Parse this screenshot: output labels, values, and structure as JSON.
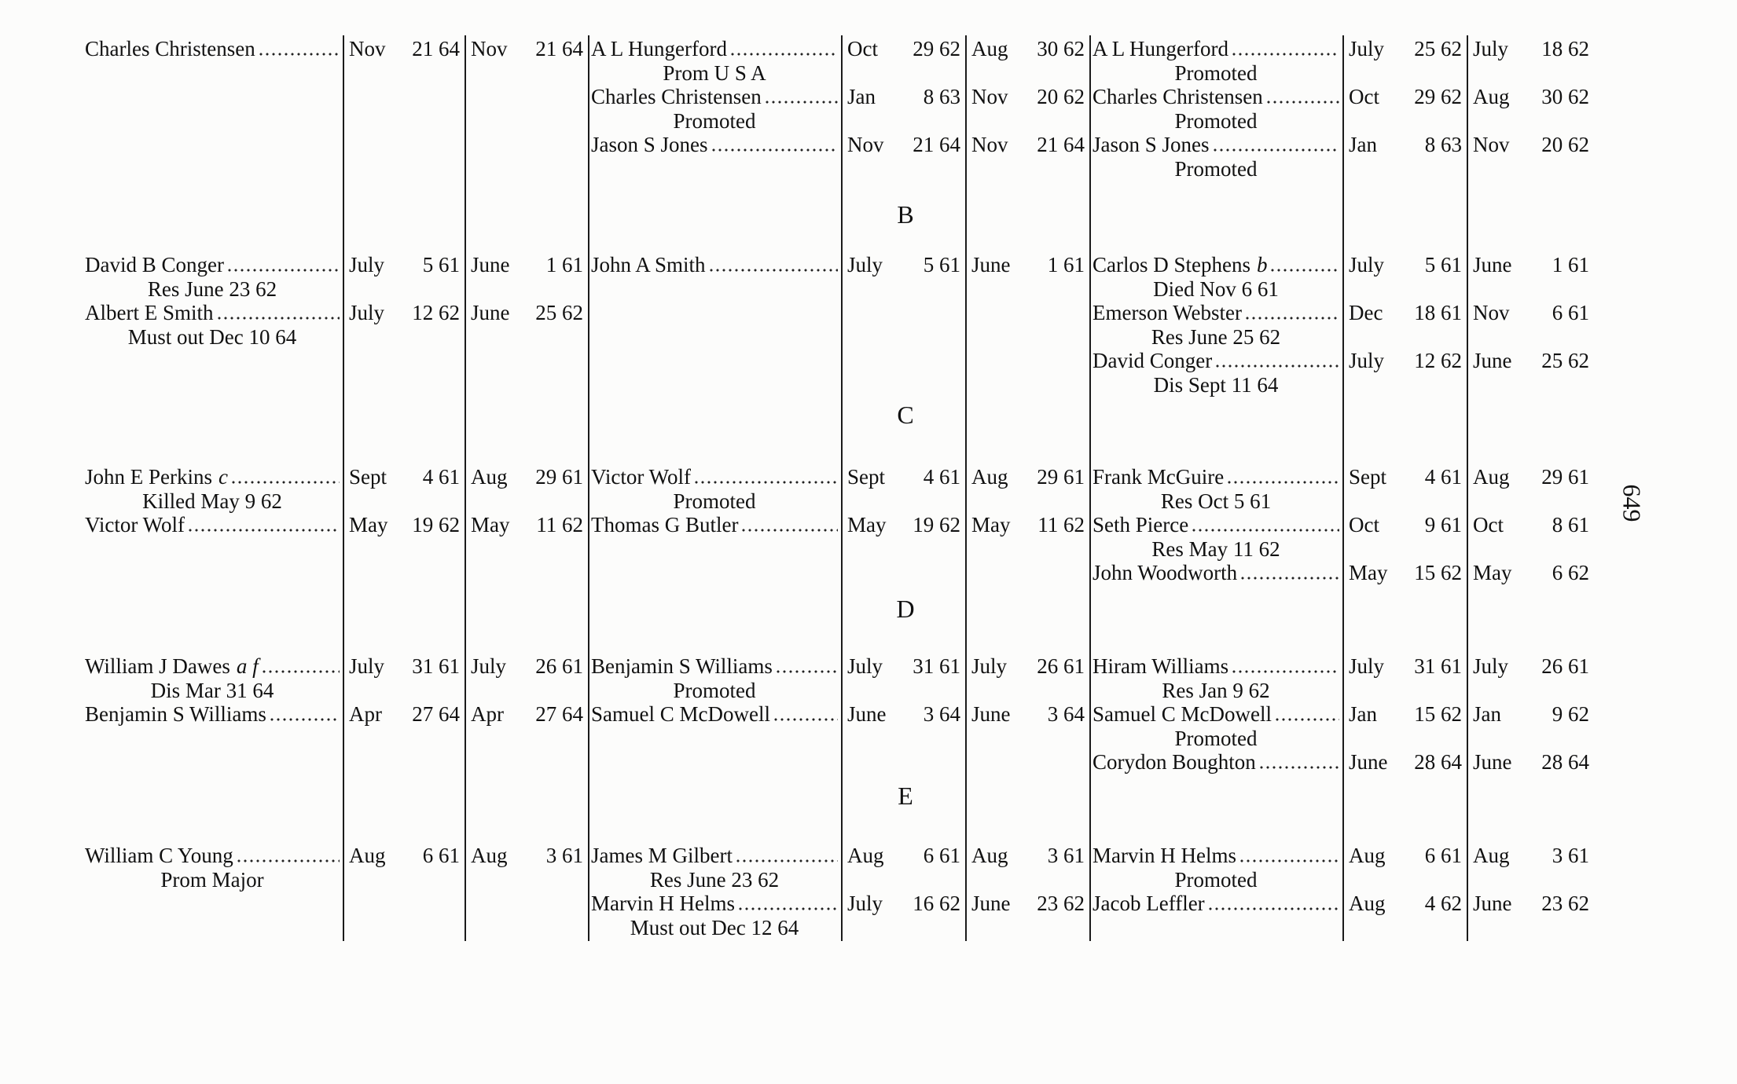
{
  "page_number": "649",
  "sections": [
    {
      "heading": "",
      "groups": [
        [
          {
            "name": "Charles Christensen",
            "mark": "",
            "note": "",
            "enrolled": "Nov 21 64",
            "mustered": "Nov 21 64"
          }
        ],
        [
          {
            "name": "A L Hungerford",
            "mark": "",
            "note": "Prom U S A",
            "enrolled": "Oct 29 62",
            "mustered": "Aug 30 62"
          },
          {
            "name": "Charles Christensen",
            "mark": "",
            "note": "Promoted",
            "enrolled": "Jan 8 63",
            "mustered": "Nov 20 62"
          },
          {
            "name": "Jason S Jones",
            "mark": "",
            "note": "",
            "enrolled": "Nov 21 64",
            "mustered": "Nov 21 64"
          }
        ],
        [
          {
            "name": "A L Hungerford",
            "mark": "",
            "note": "Promoted",
            "enrolled": "July 25 62",
            "mustered": "July 18 62"
          },
          {
            "name": "Charles Christensen",
            "mark": "",
            "note": "Promoted",
            "enrolled": "Oct 29 62",
            "mustered": "Aug 30 62"
          },
          {
            "name": "Jason S Jones",
            "mark": "",
            "note": "Promoted",
            "enrolled": "Jan 8 63",
            "mustered": "Nov 20 62"
          }
        ]
      ]
    },
    {
      "heading": "B",
      "groups": [
        [
          {
            "name": "David B Conger",
            "mark": "",
            "note": "Res June 23 62",
            "enrolled": "July 5 61",
            "mustered": "June 1 61"
          },
          {
            "name": "Albert E Smith",
            "mark": "",
            "note": "Must out Dec 10 64",
            "enrolled": "July 12 62",
            "mustered": "June 25 62"
          }
        ],
        [
          {
            "name": "John A Smith",
            "mark": "",
            "note": "",
            "enrolled": "July 5 61",
            "mustered": "June 1 61"
          }
        ],
        [
          {
            "name": "Carlos D Stephens",
            "mark": "b",
            "note": "Died Nov 6 61",
            "enrolled": "July 5 61",
            "mustered": "June 1 61"
          },
          {
            "name": "Emerson Webster",
            "mark": "",
            "note": "Res June 25 62",
            "enrolled": "Dec 18 61",
            "mustered": "Nov 6 61"
          },
          {
            "name": "David Conger",
            "mark": "",
            "note": "Dis Sept 11 64",
            "enrolled": "July 12 62",
            "mustered": "June 25 62"
          }
        ]
      ]
    },
    {
      "heading": "C",
      "groups": [
        [
          {
            "name": "John E Perkins",
            "mark": "c",
            "note": "Killed May 9 62",
            "enrolled": "Sept 4 61",
            "mustered": "Aug 29 61"
          },
          {
            "name": "Victor Wolf",
            "mark": "",
            "note": "",
            "enrolled": "May 19 62",
            "mustered": "May 11 62"
          }
        ],
        [
          {
            "name": "Victor Wolf",
            "mark": "",
            "note": "Promoted",
            "enrolled": "Sept 4 61",
            "mustered": "Aug 29 61"
          },
          {
            "name": "Thomas G Butler",
            "mark": "",
            "note": "",
            "enrolled": "May 19 62",
            "mustered": "May 11 62"
          }
        ],
        [
          {
            "name": "Frank McGuire",
            "mark": "",
            "note": "Res Oct 5 61",
            "enrolled": "Sept 4 61",
            "mustered": "Aug 29 61"
          },
          {
            "name": "Seth Pierce",
            "mark": "",
            "note": "Res May 11 62",
            "enrolled": "Oct 9 61",
            "mustered": "Oct 8 61"
          },
          {
            "name": "John Woodworth",
            "mark": "",
            "note": "",
            "enrolled": "May 15 62",
            "mustered": "May 6 62"
          }
        ]
      ]
    },
    {
      "heading": "D",
      "groups": [
        [
          {
            "name": "William J Dawes",
            "mark": "a f",
            "note": "Dis Mar 31 64",
            "enrolled": "July 31 61",
            "mustered": "July 26 61"
          },
          {
            "name": "Benjamin S Williams",
            "mark": "",
            "note": "",
            "enrolled": "Apr 27 64",
            "mustered": "Apr 27 64"
          }
        ],
        [
          {
            "name": "Benjamin S Williams",
            "mark": "",
            "note": "Promoted",
            "enrolled": "July 31 61",
            "mustered": "July 26 61"
          },
          {
            "name": "Samuel C McDowell",
            "mark": "",
            "note": "",
            "enrolled": "June 3 64",
            "mustered": "June 3 64"
          }
        ],
        [
          {
            "name": "Hiram Williams",
            "mark": "",
            "note": "Res Jan 9 62",
            "enrolled": "July 31 61",
            "mustered": "July 26 61"
          },
          {
            "name": "Samuel C McDowell",
            "mark": "",
            "note": "Promoted",
            "enrolled": "Jan 15 62",
            "mustered": "Jan 9 62"
          },
          {
            "name": "Corydon Boughton",
            "mark": "",
            "note": "",
            "enrolled": "June 28 64",
            "mustered": "June 28 64"
          }
        ]
      ]
    },
    {
      "heading": "E",
      "groups": [
        [
          {
            "name": "William C Young",
            "mark": "",
            "note": "Prom Major",
            "enrolled": "Aug 6 61",
            "mustered": "Aug 3 61"
          }
        ],
        [
          {
            "name": "James M Gilbert",
            "mark": "",
            "note": "Res June 23 62",
            "enrolled": "Aug 6 61",
            "mustered": "Aug 3 61"
          },
          {
            "name": "Marvin H Helms",
            "mark": "",
            "note": "Must out Dec 12 64",
            "enrolled": "July 16 62",
            "mustered": "June 23 62"
          }
        ],
        [
          {
            "name": "Marvin H Helms",
            "mark": "",
            "note": "Promoted",
            "enrolled": "Aug 6 61",
            "mustered": "Aug 3 61"
          },
          {
            "name": "Jacob Leffler",
            "mark": "",
            "note": "",
            "enrolled": "Aug 4 62",
            "mustered": "June 23 62"
          }
        ]
      ]
    }
  ]
}
